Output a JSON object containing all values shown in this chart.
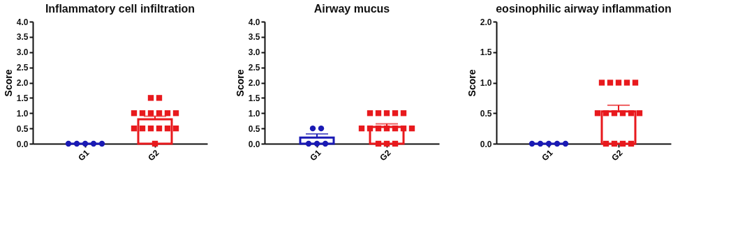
{
  "chart_data": [
    {
      "type": "bar",
      "title": "Inflammatory cell infiltration",
      "ylabel": "Score",
      "categories": [
        "G1",
        "G2"
      ],
      "ylim": [
        0,
        4
      ],
      "yticks": [
        {
          "value": 0,
          "label": "0.0"
        },
        {
          "value": 0.5,
          "label": "0.5"
        },
        {
          "value": 1,
          "label": "1.0"
        },
        {
          "value": 1.5,
          "label": "1.5"
        },
        {
          "value": 2,
          "label": "2.0"
        },
        {
          "value": 2.5,
          "label": "2.5"
        },
        {
          "value": 3,
          "label": "3.0"
        },
        {
          "value": 3.5,
          "label": "3.5"
        },
        {
          "value": 4,
          "label": "4.0"
        }
      ],
      "series": [
        {
          "colors": [
            "#1a1ab4",
            "#e8191d"
          ],
          "values": [
            0,
            0.8
          ],
          "errors": [
            null,
            [
              0.8,
              0.9
            ]
          ]
        },
        {
          "type": "scatter",
          "marker": "circle",
          "color": "#1a1ab4",
          "x": [
            "G1",
            "G1",
            "G1",
            "G1",
            "G1"
          ],
          "values": [
            0,
            0,
            0,
            0,
            0
          ]
        },
        {
          "type": "scatter",
          "marker": "square",
          "color": "#e8191d",
          "x": [
            "G2",
            "G2",
            "G2",
            "G2",
            "G2",
            "G2",
            "G2",
            "G2",
            "G2",
            "G2",
            "G2",
            "G2",
            "G2",
            "G2",
            "G2"
          ],
          "values": [
            1.5,
            1.5,
            1,
            1,
            1,
            1,
            1,
            1,
            0.5,
            0.5,
            0.5,
            0.5,
            0.5,
            0.5,
            0
          ]
        }
      ]
    },
    {
      "type": "bar",
      "title": "Airway mucus",
      "ylabel": "Score",
      "categories": [
        "G1",
        "G2"
      ],
      "ylim": [
        0,
        4
      ],
      "yticks": [
        {
          "value": 0,
          "label": "0.0"
        },
        {
          "value": 0.5,
          "label": "0.5"
        },
        {
          "value": 1,
          "label": "1.0"
        },
        {
          "value": 1.5,
          "label": "1.5"
        },
        {
          "value": 2,
          "label": "2.0"
        },
        {
          "value": 2.5,
          "label": "2.5"
        },
        {
          "value": 3,
          "label": "3.0"
        },
        {
          "value": 3.5,
          "label": "3.5"
        },
        {
          "value": 4,
          "label": "4.0"
        }
      ],
      "series": [
        {
          "colors": [
            "#1a1ab4",
            "#e8191d"
          ],
          "values": [
            0.2,
            0.55
          ],
          "errors": [
            [
              0.2,
              0.32
            ],
            [
              0.55,
              0.65
            ]
          ]
        },
        {
          "type": "scatter",
          "marker": "circle",
          "color": "#1a1ab4",
          "x": [
            "G1",
            "G1",
            "G1",
            "G1",
            "G1"
          ],
          "values": [
            0.5,
            0.5,
            0,
            0,
            0
          ]
        },
        {
          "type": "scatter",
          "marker": "square",
          "color": "#e8191d",
          "x": [
            "G2",
            "G2",
            "G2",
            "G2",
            "G2",
            "G2",
            "G2",
            "G2",
            "G2",
            "G2",
            "G2",
            "G2",
            "G2",
            "G2",
            "G2"
          ],
          "values": [
            1,
            1,
            1,
            1,
            1,
            0.5,
            0.5,
            0.5,
            0.5,
            0.5,
            0.5,
            0.5,
            0,
            0,
            0
          ]
        }
      ]
    },
    {
      "type": "bar",
      "title": "eosinophilic airway inflammation",
      "ylabel": "Score",
      "categories": [
        "G1",
        "G2"
      ],
      "ylim": [
        0,
        2
      ],
      "yticks": [
        {
          "value": 0,
          "label": "0.0"
        },
        {
          "value": 0.5,
          "label": "0.5"
        },
        {
          "value": 1,
          "label": "1.0"
        },
        {
          "value": 1.5,
          "label": "1.5"
        },
        {
          "value": 2,
          "label": "2.0"
        }
      ],
      "series": [
        {
          "colors": [
            "#1a1ab4",
            "#e8191d"
          ],
          "values": [
            0,
            0.53
          ],
          "errors": [
            null,
            [
              0.53,
              0.63
            ]
          ]
        },
        {
          "type": "scatter",
          "marker": "circle",
          "color": "#1a1ab4",
          "x": [
            "G1",
            "G1",
            "G1",
            "G1",
            "G1"
          ],
          "values": [
            0,
            0,
            0,
            0,
            0
          ]
        },
        {
          "type": "scatter",
          "marker": "square",
          "color": "#e8191d",
          "x": [
            "G2",
            "G2",
            "G2",
            "G2",
            "G2",
            "G2",
            "G2",
            "G2",
            "G2",
            "G2",
            "G2",
            "G2",
            "G2",
            "G2",
            "G2"
          ],
          "values": [
            1,
            1,
            1,
            1,
            1,
            0.5,
            0.5,
            0.5,
            0.5,
            0.5,
            0.5,
            0,
            0,
            0,
            0
          ]
        }
      ]
    }
  ]
}
